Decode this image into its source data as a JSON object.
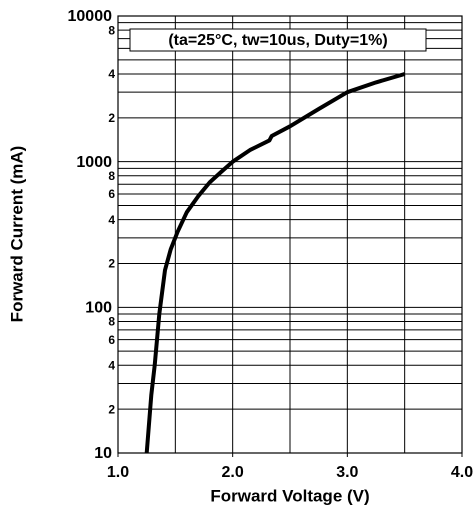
{
  "chart_data": {
    "type": "line",
    "x_label": "Forward Voltage (V)",
    "y_label": "Forward Current (mA)",
    "annotation": "(ta=25°C, tw=10us, Duty=1%)",
    "y_log": true,
    "grid": true,
    "xlim": [
      1.0,
      4.0
    ],
    "xticks": [
      {
        "value": 1,
        "label": "1.0"
      },
      {
        "value": 2,
        "label": "2.0"
      },
      {
        "value": 3,
        "label": "3.0"
      },
      {
        "value": 4,
        "label": "4.0"
      }
    ],
    "xgrid": [
      1.5,
      2,
      2.5,
      3,
      3.5
    ],
    "ylim": [
      10,
      10000
    ],
    "yticks": [
      10,
      {
        "value": 20,
        "label": "2"
      },
      {
        "value": 40,
        "label": "4"
      },
      {
        "value": 60,
        "label": "6"
      },
      {
        "value": 80,
        "label": "8"
      },
      100,
      {
        "value": 200,
        "label": "2"
      },
      {
        "value": 400,
        "label": "4"
      },
      {
        "value": 600,
        "label": "6"
      },
      {
        "value": 800,
        "label": "8"
      },
      1000,
      {
        "value": 2000,
        "label": "2"
      },
      {
        "value": 4000,
        "label": "4"
      },
      {
        "value": 8000,
        "label": "8"
      },
      10000
    ],
    "yminor": [
      30,
      50,
      70,
      90,
      300,
      500,
      700,
      900,
      3000,
      5000,
      6000,
      7000,
      9000
    ],
    "series": [
      {
        "color": "#000000",
        "x": [
          1.25,
          1.29,
          1.32,
          1.36,
          1.41,
          1.46,
          1.52,
          1.6,
          1.7,
          1.8,
          1.9,
          2.0,
          2.15,
          2.32,
          2.34,
          2.5,
          2.75,
          3.0,
          3.25,
          3.5
        ],
        "values": [
          10,
          25,
          40,
          90,
          180,
          250,
          330,
          450,
          580,
          720,
          850,
          1000,
          1200,
          1400,
          1500,
          1750,
          2300,
          3000,
          3500,
          4000
        ]
      }
    ]
  }
}
